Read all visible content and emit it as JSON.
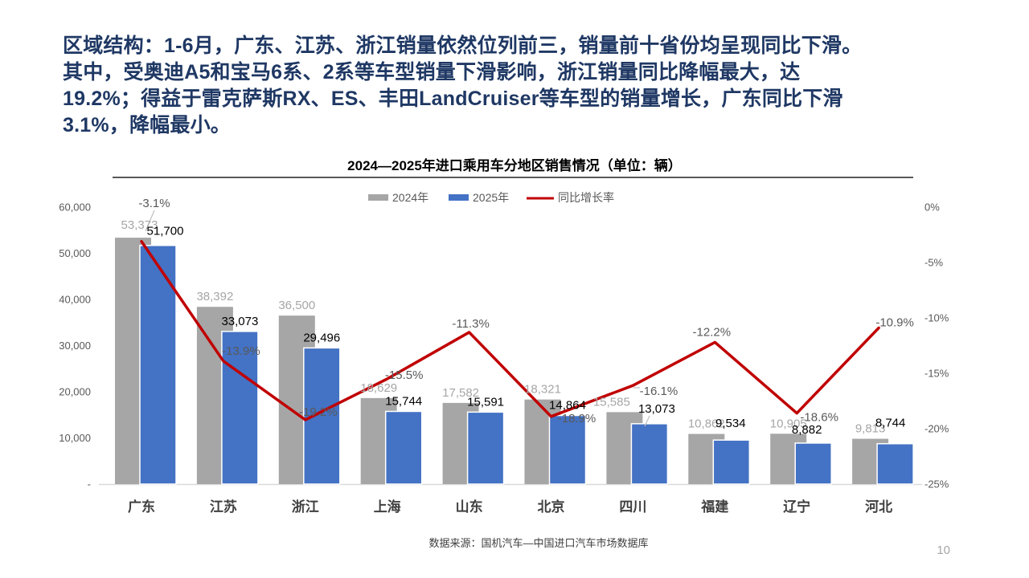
{
  "slide": {
    "headline": "区域结构：1-6月，广东、江苏、浙江销量依然位列前三，销量前十省份均呈现同比下滑。\n其中，受奥迪A5和宝马6系、2系等车型销量下滑影响，浙江销量同比降幅最大，达\n19.2%；得益于雷克萨斯RX、ES、丰田LandCruiser等车型的销量增长，广东同比下滑\n3.1%，降幅最小。",
    "headline_color": "#1F3864",
    "source_note": "数据来源：国机汽车—中国进口汽车市场数据库",
    "page_number": "10"
  },
  "chart_data": {
    "type": "bar",
    "subtype": "grouped-bars-with-line",
    "title": "2024—2025年进口乘用车分地区销售情况（单位：辆）",
    "categories": [
      "广东",
      "江苏",
      "浙江",
      "上海",
      "山东",
      "北京",
      "四川",
      "福建",
      "辽宁",
      "河北"
    ],
    "series": [
      {
        "name": "2024年",
        "type": "bar",
        "color": "#A6A6A6",
        "values": [
          53373,
          38392,
          36500,
          18629,
          17582,
          18321,
          15585,
          10862,
          10905,
          9813
        ],
        "labels": [
          "53,373",
          "38,392",
          "36,500",
          "18,629",
          "17,582",
          "18,321",
          "15,585",
          "10,862",
          "10,905",
          "9,813"
        ]
      },
      {
        "name": "2025年",
        "type": "bar",
        "color": "#4472C4",
        "values": [
          51700,
          33073,
          29496,
          15744,
          15591,
          14864,
          13073,
          9534,
          8882,
          8744
        ],
        "labels": [
          "51,700",
          "33,073",
          "29,496",
          "15,744",
          "15,591",
          "14,864",
          "13,073",
          "9,534",
          "8,882",
          "8,744"
        ]
      },
      {
        "name": "同比增长率",
        "type": "line",
        "color": "#C00000",
        "values": [
          -3.1,
          -13.9,
          -19.2,
          -15.5,
          -11.3,
          -18.9,
          -16.1,
          -12.2,
          -18.6,
          -10.9
        ],
        "labels": [
          "-3.1%",
          "-13.9%",
          "-19.2%",
          "-15.5%",
          "-11.3%",
          "-18.9%",
          "-16.1%",
          "-12.2%",
          "-18.6%",
          "-10.9%"
        ]
      }
    ],
    "left_axis": {
      "min": 0,
      "max": 60000,
      "label_ticks": [
        "60,000",
        "50,000",
        "40,000",
        "30,000",
        "20,000",
        "10,000",
        "-"
      ]
    },
    "right_axis": {
      "min": -25,
      "max": 0,
      "unit": "%",
      "label_ticks": [
        "0%",
        "-5%",
        "-10%",
        "-15%",
        "-20%",
        "-25%"
      ]
    },
    "legend": {
      "position": "top",
      "items": [
        "2024年",
        "2025年",
        "同比增长率"
      ]
    },
    "grid": false,
    "label_colors": {
      "value_2024": "#A6A6A6",
      "value_2025": "#000000",
      "growth": "#595959",
      "axis": "#595959",
      "category": "#404040"
    }
  }
}
